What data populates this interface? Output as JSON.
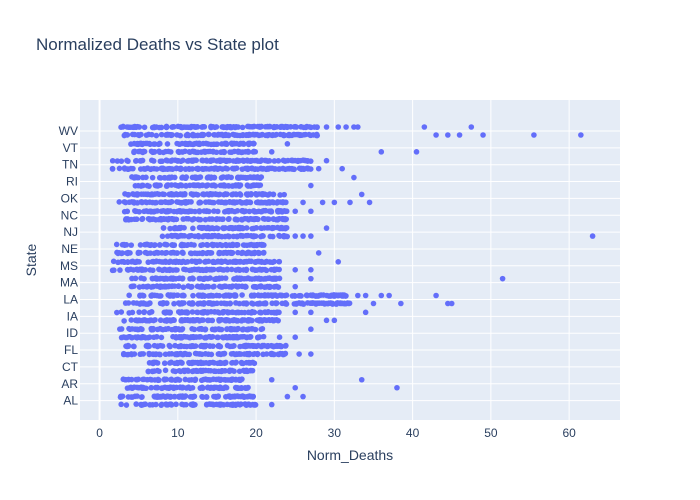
{
  "chart_data": {
    "type": "scatter",
    "title": "Normalized Deaths vs State plot",
    "xlabel": "Norm_Deaths",
    "ylabel": "State",
    "xlim": [
      -2.5,
      66.5
    ],
    "x_ticks": [
      0,
      10,
      20,
      30,
      40,
      50,
      60
    ],
    "categories": [
      "AL",
      "AR",
      "CT",
      "FL",
      "ID",
      "IA",
      "LA",
      "MA",
      "MS",
      "NE",
      "NJ",
      "NC",
      "OK",
      "RI",
      "TN",
      "VT",
      "WV"
    ],
    "grid": true,
    "legend": "none",
    "colors": {
      "marker": "#636efa",
      "plot_bg": "#e5ecf6",
      "grid": "#ffffff",
      "text": "#2a3f5f"
    },
    "series": [
      {
        "points": [
          {
            "state": "AL",
            "x_min": 2.5,
            "x_max": 20,
            "extra": [
              22,
              24,
              26
            ]
          },
          {
            "state": "AR",
            "x_min": 3,
            "x_max": 19,
            "extra": [
              22,
              25,
              33.5,
              38
            ]
          },
          {
            "state": "CT",
            "x_min": 6,
            "x_max": 20,
            "extra": []
          },
          {
            "state": "FL",
            "x_min": 3,
            "x_max": 24,
            "extra": [
              25.5,
              27
            ]
          },
          {
            "state": "ID",
            "x_min": 2.5,
            "x_max": 21,
            "extra": [
              23,
              25,
              27
            ]
          },
          {
            "state": "IA",
            "x_min": 2,
            "x_max": 23,
            "extra": [
              25,
              27,
              29,
              30,
              34
            ]
          },
          {
            "state": "LA",
            "x_min": 3,
            "x_max": 32,
            "extra": [
              33,
              34,
              35,
              36,
              37,
              38.5,
              43,
              44.5,
              45
            ]
          },
          {
            "state": "MA",
            "x_min": 4,
            "x_max": 23,
            "extra": [
              25,
              27,
              51.5
            ]
          },
          {
            "state": "MS",
            "x_min": 1.5,
            "x_max": 23,
            "extra": [
              25,
              27,
              30.5
            ]
          },
          {
            "state": "NE",
            "x_min": 2,
            "x_max": 21,
            "extra": [
              28
            ]
          },
          {
            "state": "NJ",
            "x_min": 8,
            "x_max": 24,
            "extra": [
              25,
              26,
              27,
              29,
              63
            ]
          },
          {
            "state": "NC",
            "x_min": 3,
            "x_max": 24,
            "extra": [
              25,
              27
            ]
          },
          {
            "state": "OK",
            "x_min": 2.5,
            "x_max": 24,
            "extra": [
              26,
              28.5,
              30,
              32,
              33.5,
              34.5
            ]
          },
          {
            "state": "RI",
            "x_min": 4,
            "x_max": 21,
            "extra": [
              27,
              32.5
            ]
          },
          {
            "state": "TN",
            "x_min": 1.5,
            "x_max": 27,
            "extra": [
              28,
              29,
              31
            ]
          },
          {
            "state": "VT",
            "x_min": 4,
            "x_max": 20,
            "extra": [
              22,
              24,
              36,
              40.5
            ]
          },
          {
            "state": "WV",
            "x_min": 2.5,
            "x_max": 28,
            "extra": [
              29,
              30.5,
              31.5,
              32.5,
              33,
              41.5,
              43,
              44.5,
              46,
              47.5,
              49,
              55.5,
              61.5
            ]
          }
        ]
      }
    ]
  }
}
